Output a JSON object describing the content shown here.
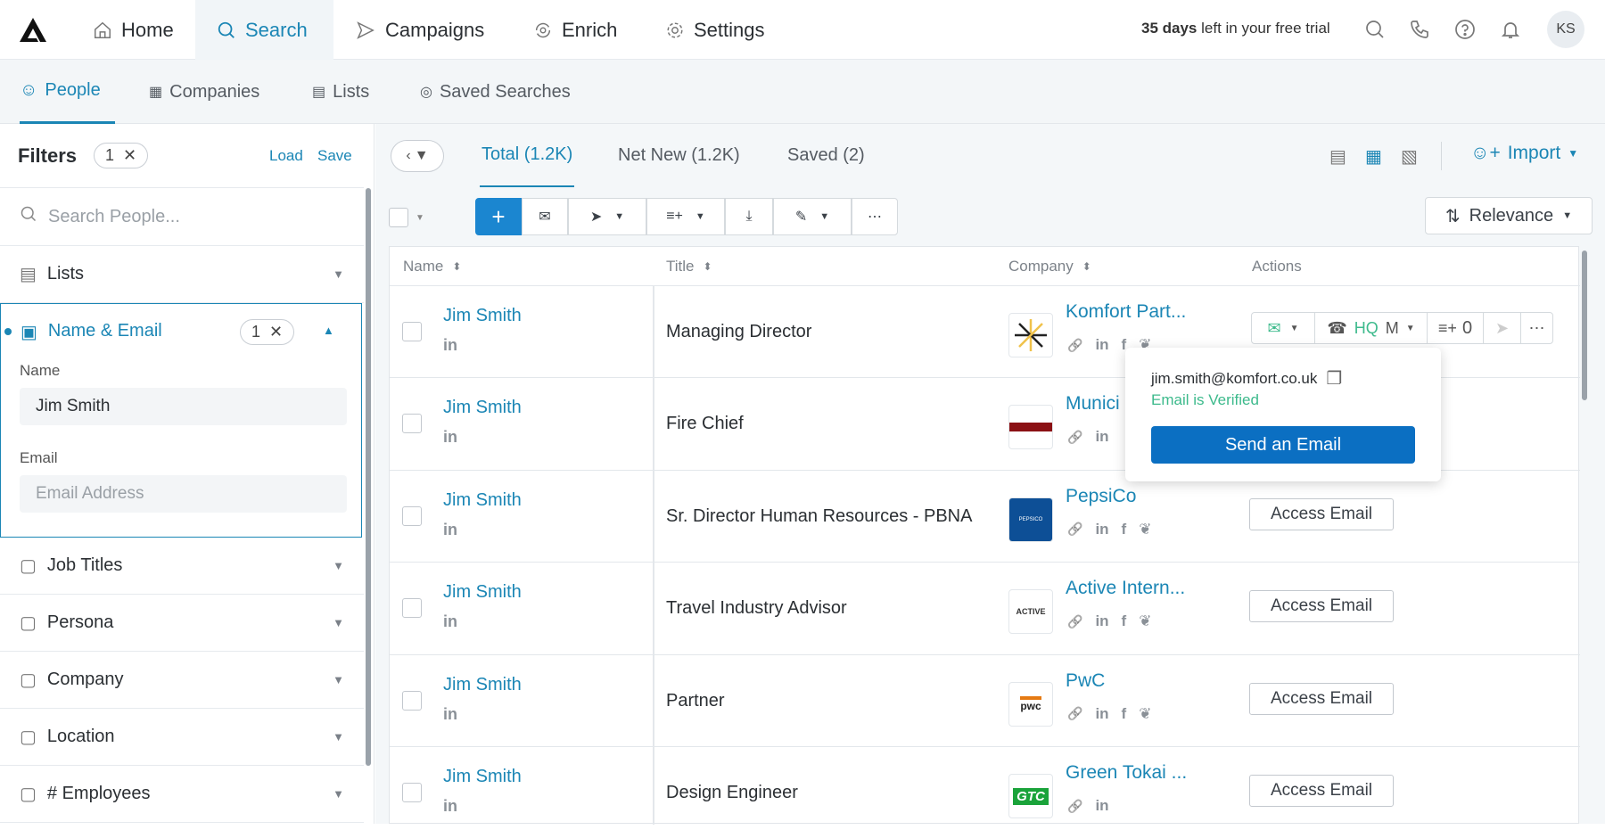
{
  "topnav": {
    "items": [
      {
        "label": "Home",
        "icon": "home-icon"
      },
      {
        "label": "Search",
        "icon": "search-icon",
        "active": true
      },
      {
        "label": "Campaigns",
        "icon": "send-icon"
      },
      {
        "label": "Enrich",
        "icon": "enrich-icon"
      },
      {
        "label": "Settings",
        "icon": "gear-icon"
      }
    ],
    "trial_days": "35 days",
    "trial_rest": " left in your free trial",
    "avatar": "KS"
  },
  "subnav": {
    "items": [
      {
        "label": "People",
        "active": true
      },
      {
        "label": "Companies"
      },
      {
        "label": "Lists"
      },
      {
        "label": "Saved Searches"
      }
    ]
  },
  "sidebar": {
    "title": "Filters",
    "count": "1",
    "load": "Load",
    "save": "Save",
    "search_placeholder": "Search People...",
    "lists": "Lists",
    "name_email": {
      "label": "Name & Email",
      "count": "1",
      "name_label": "Name",
      "name_value": "Jim Smith",
      "email_label": "Email",
      "email_placeholder": "Email Address"
    },
    "filters": [
      "Job Titles",
      "Persona",
      "Company",
      "Location",
      "# Employees"
    ]
  },
  "main": {
    "tabs": [
      "Total (1.2K)",
      "Net New (1.2K)",
      "Saved (2)"
    ],
    "import": "Import",
    "sort": "Relevance",
    "columns": [
      "Name",
      "Title",
      "Company",
      "Actions"
    ],
    "rows": [
      {
        "name": "Jim Smith",
        "title": "Managing Director",
        "company": "Komfort Part...",
        "logo": "komfort",
        "fb": true,
        "tw": true
      },
      {
        "name": "Jim Smith",
        "title": "Fire Chief",
        "company": "Munici",
        "logo": "munici",
        "fb": false,
        "tw": false
      },
      {
        "name": "Jim Smith",
        "title": "Sr. Director Human Resources - PBNA",
        "company": "PepsiCo",
        "logo": "pepsico",
        "fb": true,
        "tw": true,
        "access": "Access Email"
      },
      {
        "name": "Jim Smith",
        "title": "Travel Industry Advisor",
        "company": "Active Intern...",
        "logo": "active",
        "fb": true,
        "tw": true,
        "access": "Access Email"
      },
      {
        "name": "Jim Smith",
        "title": "Partner",
        "company": "PwC",
        "logo": "pwc",
        "fb": true,
        "tw": true,
        "access": "Access Email"
      },
      {
        "name": "Jim Smith",
        "title": "Design Engineer",
        "company": "Green Tokai ...",
        "logo": "gtc",
        "fb": false,
        "tw": false,
        "access": "Access Email"
      }
    ],
    "action_bar": {
      "phone": "HQ",
      "phone_suffix": "M",
      "sequence_count": "0"
    }
  },
  "popup": {
    "email": "jim.smith@komfort.co.uk",
    "status": "Email is Verified",
    "button": "Send an Email"
  },
  "colors": {
    "accent": "#1b86b5",
    "primary_button": "#0b6fc2",
    "verified": "#3dba8c"
  }
}
